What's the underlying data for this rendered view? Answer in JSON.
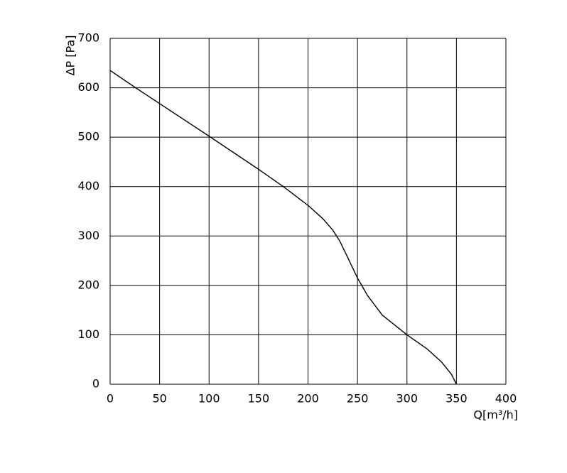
{
  "chart_data": {
    "type": "line",
    "x_label": "Q[m³/h]",
    "y_label": "ΔP [Pa]",
    "series": [
      {
        "color": "#000000",
        "x": [
          0,
          25,
          50,
          100,
          150,
          175,
          200,
          215,
          225,
          232,
          240,
          250,
          260,
          275,
          300,
          320,
          335,
          345,
          350
        ],
        "values": [
          635,
          601,
          568,
          502,
          435,
          400,
          362,
          335,
          312,
          290,
          257,
          215,
          180,
          140,
          100,
          72,
          45,
          20,
          0
        ]
      }
    ],
    "xlim": [
      0,
      400
    ],
    "xticks": [
      0,
      50,
      100,
      150,
      200,
      250,
      300,
      350,
      400
    ],
    "ylim": [
      0,
      700
    ],
    "yticks": [
      0,
      100,
      200,
      300,
      400,
      500,
      600,
      700
    ],
    "grid": true
  }
}
